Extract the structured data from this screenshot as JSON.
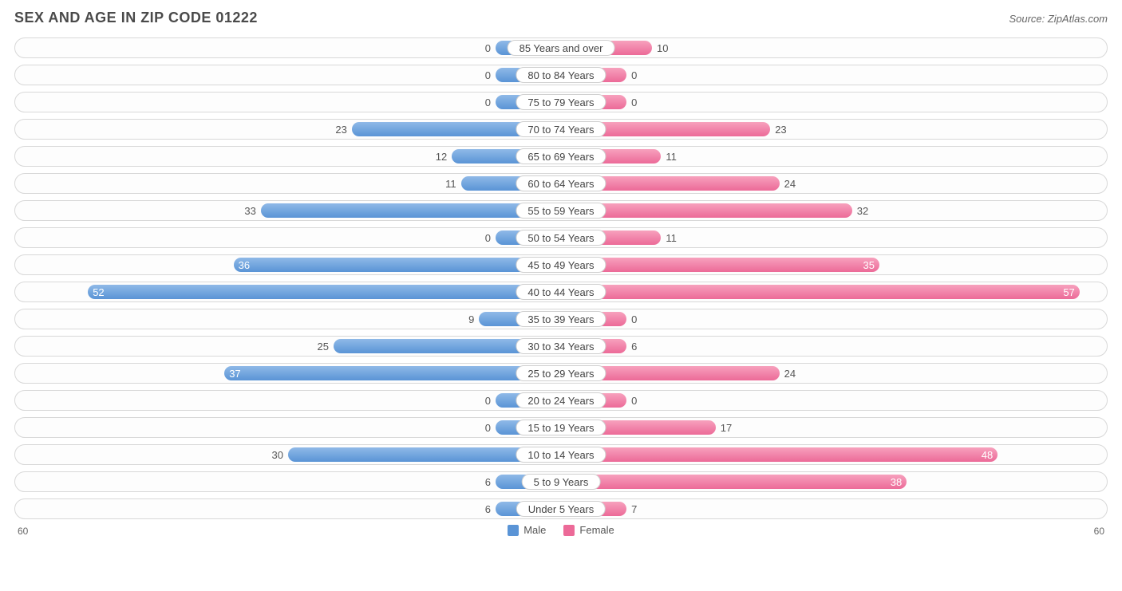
{
  "title": "SEX AND AGE IN ZIP CODE 01222",
  "source": "Source: ZipAtlas.com",
  "axis_max": 60,
  "min_bar_pct": 12,
  "colors": {
    "male": "#5a94d6",
    "female": "#ec6a98",
    "track_border": "#d8d8d8",
    "text": "#555"
  },
  "legend": [
    {
      "label": "Male",
      "color": "#5a94d6"
    },
    {
      "label": "Female",
      "color": "#ec6a98"
    }
  ],
  "rows": [
    {
      "category": "85 Years and over",
      "male": 0,
      "female": 10
    },
    {
      "category": "80 to 84 Years",
      "male": 0,
      "female": 0
    },
    {
      "category": "75 to 79 Years",
      "male": 0,
      "female": 0
    },
    {
      "category": "70 to 74 Years",
      "male": 23,
      "female": 23
    },
    {
      "category": "65 to 69 Years",
      "male": 12,
      "female": 11
    },
    {
      "category": "60 to 64 Years",
      "male": 11,
      "female": 24
    },
    {
      "category": "55 to 59 Years",
      "male": 33,
      "female": 32
    },
    {
      "category": "50 to 54 Years",
      "male": 0,
      "female": 11
    },
    {
      "category": "45 to 49 Years",
      "male": 36,
      "female": 35
    },
    {
      "category": "40 to 44 Years",
      "male": 52,
      "female": 57
    },
    {
      "category": "35 to 39 Years",
      "male": 9,
      "female": 0
    },
    {
      "category": "30 to 34 Years",
      "male": 25,
      "female": 6
    },
    {
      "category": "25 to 29 Years",
      "male": 37,
      "female": 24
    },
    {
      "category": "20 to 24 Years",
      "male": 0,
      "female": 0
    },
    {
      "category": "15 to 19 Years",
      "male": 0,
      "female": 17
    },
    {
      "category": "10 to 14 Years",
      "male": 30,
      "female": 48
    },
    {
      "category": "5 to 9 Years",
      "male": 6,
      "female": 38
    },
    {
      "category": "Under 5 Years",
      "male": 6,
      "female": 7
    }
  ]
}
